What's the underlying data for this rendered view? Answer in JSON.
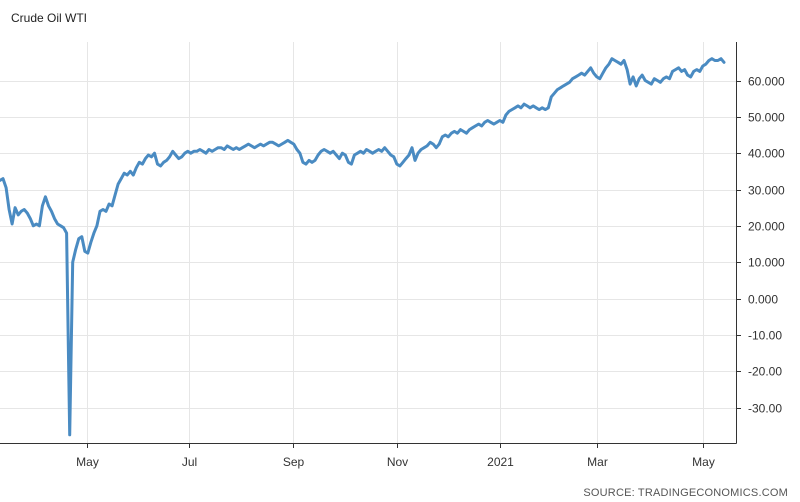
{
  "header": {
    "title": "Crude Oil WTI"
  },
  "footer": {
    "source": "SOURCE: TRADINGECONOMICS.COM"
  },
  "chart_data": {
    "type": "line",
    "title": "Crude Oil WTI",
    "xlabel": "",
    "ylabel": "",
    "x_ticks": [
      "May",
      "Jul",
      "Sep",
      "Nov",
      "2021",
      "Mar",
      "May"
    ],
    "y_ticks": [
      "60.000",
      "50.000",
      "40.000",
      "30.000",
      "20.000",
      "10.000",
      "0.000",
      "-10.00",
      "-20.00",
      "-30.00"
    ],
    "y_tick_values": [
      60,
      50,
      40,
      30,
      20,
      10,
      0,
      -10,
      -20,
      -30
    ],
    "ylim": [
      -40,
      70
    ],
    "grid": true,
    "line_color": "#4a8bc2",
    "series": [
      {
        "values": [
          32.5,
          33.0,
          30.5,
          24.5,
          20.5,
          25.0,
          23.0,
          24.0,
          24.5,
          23.5,
          22.0,
          20.0,
          20.5,
          20.0,
          25.5,
          28.0,
          25.5,
          24.0,
          22.0,
          20.5,
          20.0,
          19.5,
          18.0,
          -37.5,
          10.0,
          13.5,
          16.5,
          17.0,
          13.0,
          12.5,
          15.5,
          18.0,
          20.0,
          24.0,
          24.5,
          24.0,
          26.0,
          25.5,
          28.5,
          31.5,
          33.0,
          34.5,
          34.0,
          35.0,
          34.0,
          36.0,
          37.5,
          37.0,
          38.5,
          39.5,
          39.0,
          40.0,
          37.0,
          36.5,
          37.5,
          38.0,
          39.0,
          40.5,
          39.5,
          38.5,
          39.0,
          40.0,
          40.5,
          40.0,
          40.5,
          40.5,
          41.0,
          40.5,
          40.0,
          41.0,
          40.5,
          41.0,
          41.5,
          41.5,
          41.0,
          42.0,
          41.5,
          41.0,
          41.5,
          41.0,
          41.5,
          42.0,
          42.5,
          42.0,
          41.5,
          42.0,
          42.5,
          42.0,
          42.5,
          43.0,
          43.0,
          42.5,
          42.0,
          42.5,
          43.0,
          43.5,
          43.0,
          42.5,
          41.0,
          40.0,
          37.5,
          37.0,
          38.0,
          37.5,
          38.0,
          39.5,
          40.5,
          41.0,
          40.5,
          40.0,
          40.5,
          39.5,
          38.5,
          40.0,
          39.5,
          37.5,
          37.0,
          39.5,
          40.0,
          40.5,
          40.0,
          41.0,
          40.5,
          40.0,
          40.5,
          41.0,
          40.5,
          41.5,
          40.5,
          39.5,
          39.0,
          37.0,
          36.5,
          37.5,
          38.5,
          39.5,
          41.5,
          38.0,
          40.0,
          41.0,
          41.5,
          42.0,
          43.0,
          42.5,
          41.5,
          42.5,
          44.5,
          45.0,
          44.5,
          45.5,
          46.0,
          45.5,
          46.5,
          46.0,
          45.5,
          46.5,
          47.0,
          47.5,
          48.0,
          47.5,
          48.5,
          49.0,
          48.5,
          48.0,
          48.5,
          49.0,
          48.5,
          50.5,
          51.5,
          52.0,
          52.5,
          53.0,
          52.5,
          53.5,
          53.0,
          52.5,
          53.0,
          52.5,
          52.0,
          52.5,
          52.0,
          52.5,
          55.5,
          56.5,
          57.5,
          58.0,
          58.5,
          59.0,
          59.5,
          60.5,
          61.0,
          61.5,
          62.0,
          61.5,
          62.5,
          63.5,
          62.0,
          61.0,
          60.5,
          62.0,
          63.5,
          64.5,
          66.0,
          65.5,
          65.0,
          64.5,
          65.5,
          63.0,
          59.0,
          61.0,
          58.5,
          60.5,
          61.5,
          60.0,
          59.5,
          59.0,
          60.5,
          60.0,
          59.5,
          60.5,
          61.0,
          60.5,
          62.5,
          63.0,
          63.5,
          62.5,
          63.0,
          61.5,
          61.0,
          62.5,
          63.0,
          62.5,
          64.0,
          64.5,
          65.5,
          66.0,
          65.5,
          65.5,
          66.0,
          65.0
        ]
      }
    ]
  }
}
